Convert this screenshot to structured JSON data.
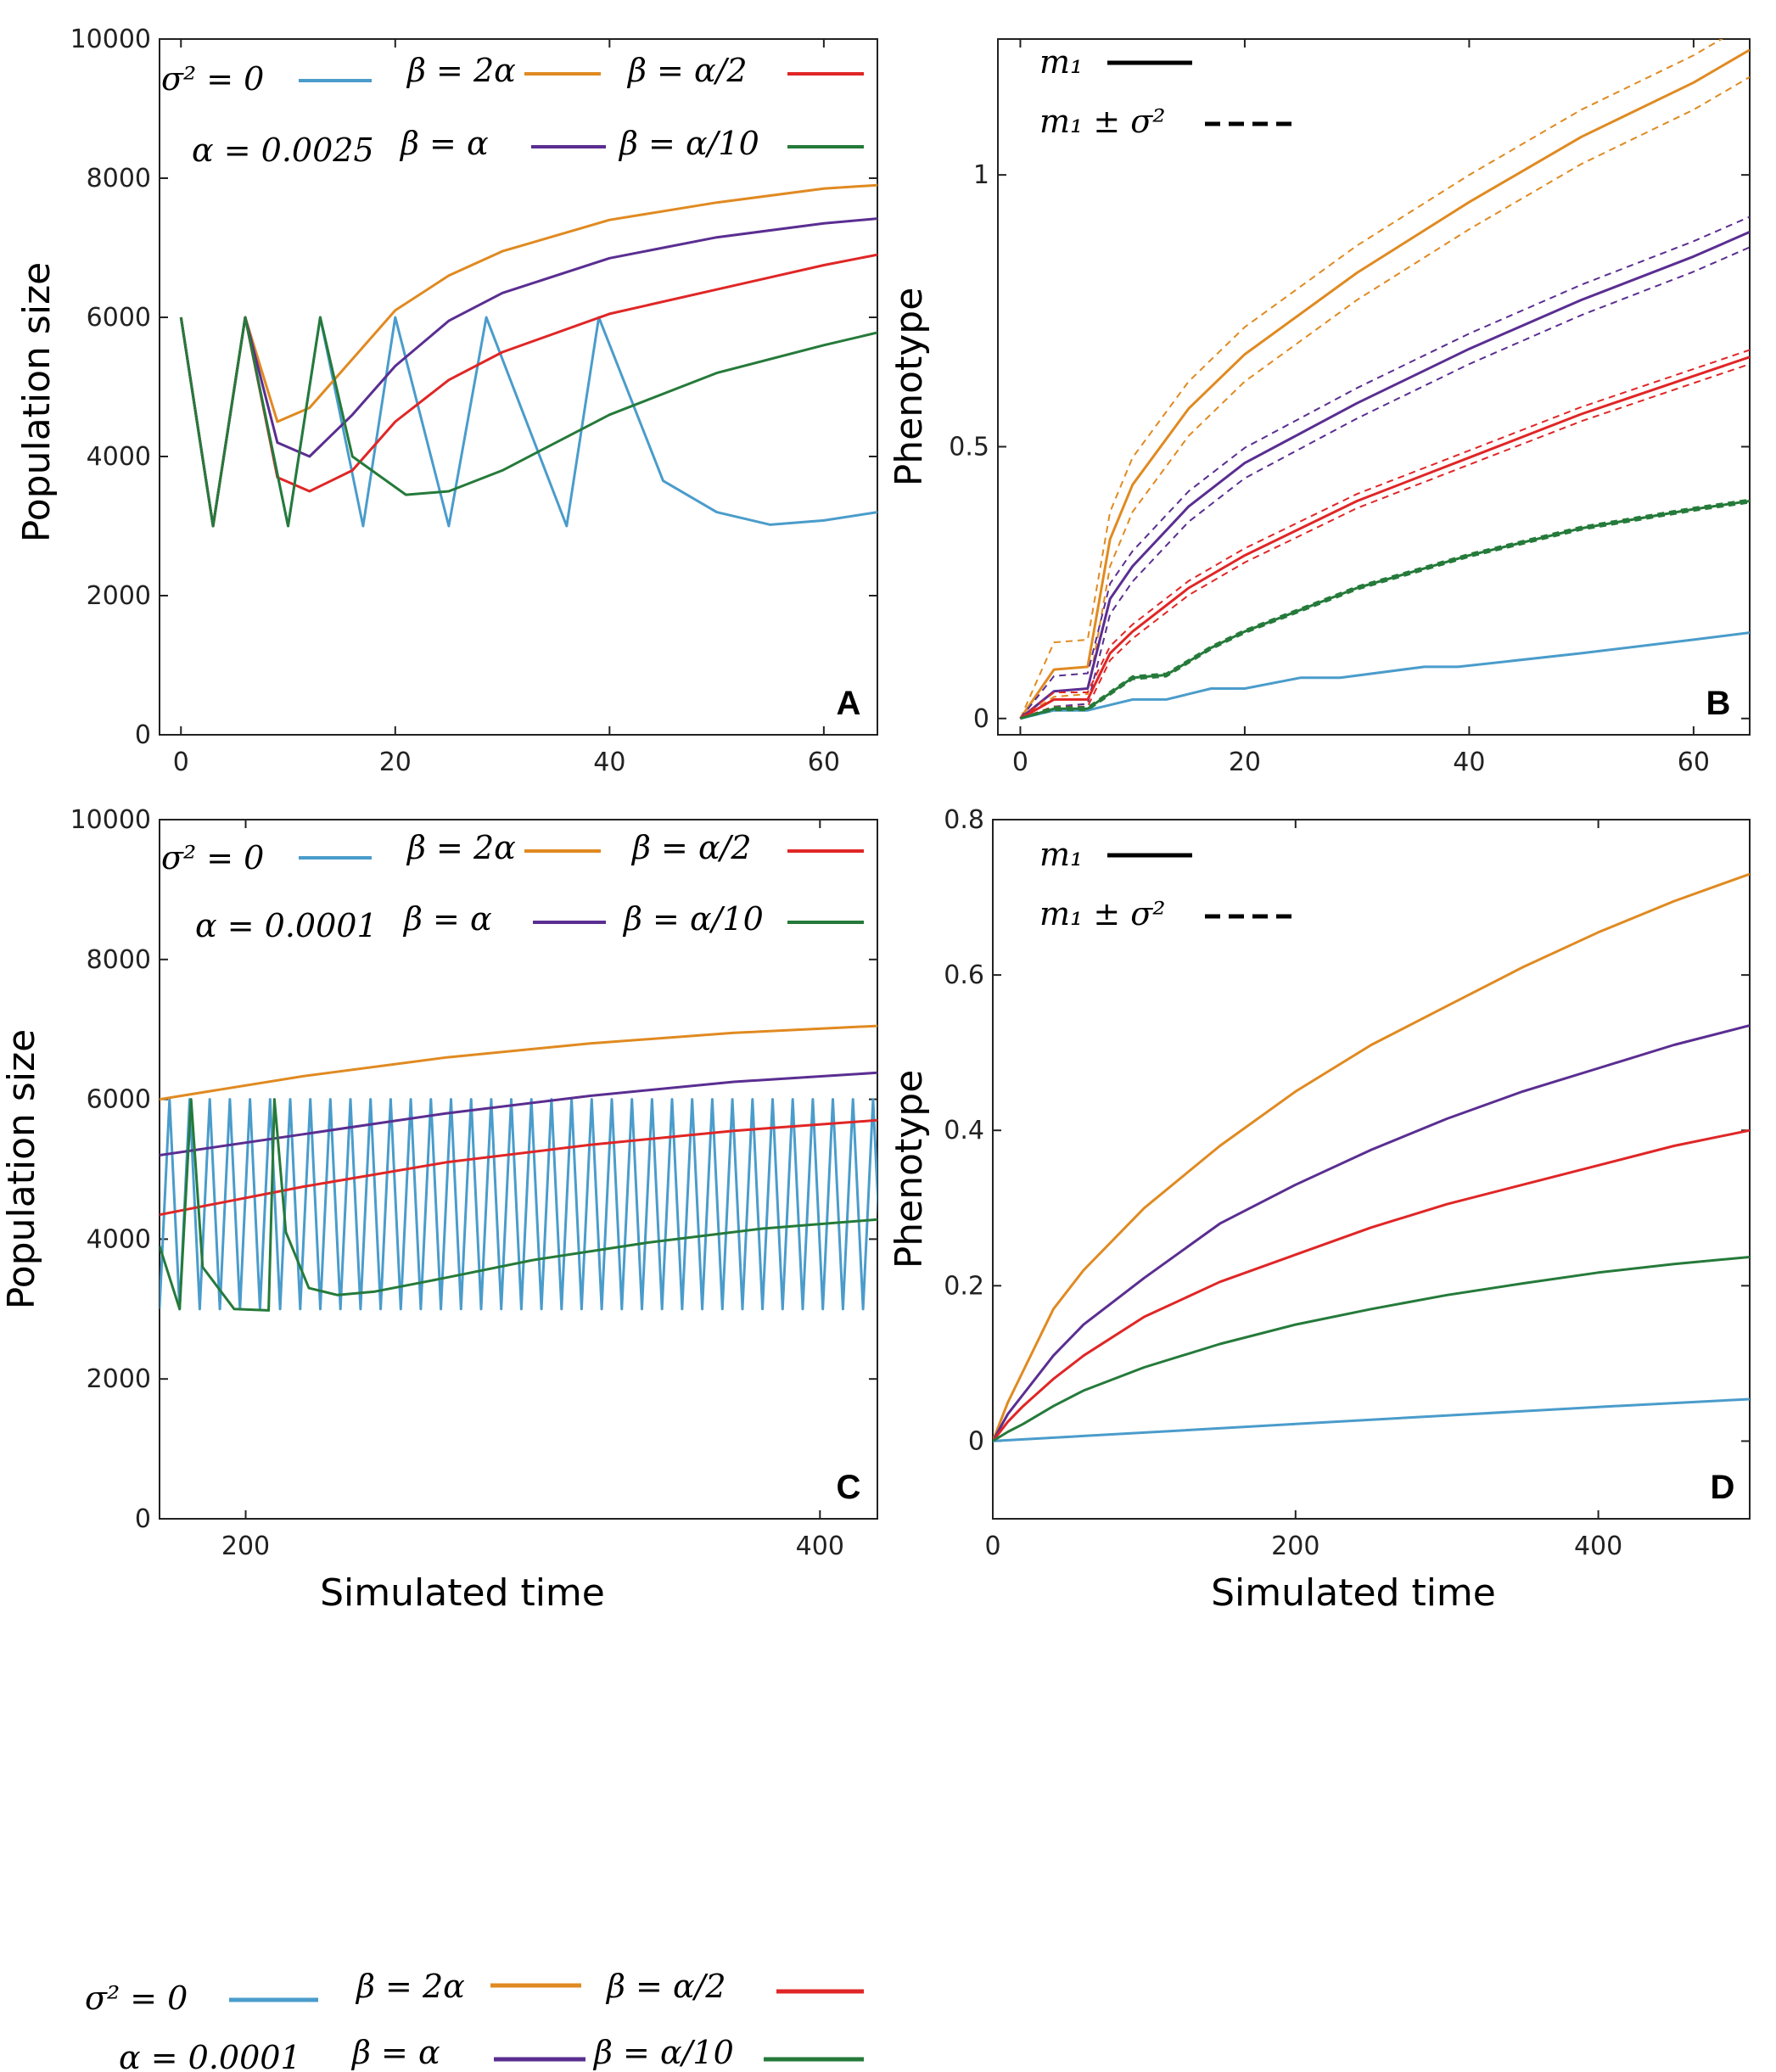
{
  "colors": {
    "sigma0": "#4a9ccb",
    "beta_2alpha": "#e08a21",
    "beta_alpha_half": "#e02626",
    "beta_alpha": "#5a2e91",
    "beta_alpha_tenth": "#257a3a"
  },
  "legend_entries": [
    "σ² = 0",
    "β = 2α",
    "β = α/2",
    "β = α",
    "β = α/10"
  ],
  "legend_alpha_panelA": "α = 0.0025",
  "legend_alpha_panelC": "α = 0.0001",
  "phenotype_legend": {
    "mean": "m₁",
    "spread": "m₁ ± σ²"
  },
  "bottom_legend": {
    "sigma0": "σ² = 0",
    "b2a": "β = 2α",
    "bah": "β = α/2",
    "alpha": "α = 0.0001",
    "ba": "β = α",
    "bat": "β = α/10"
  },
  "chart_data": [
    {
      "panel": "A",
      "type": "line",
      "xlabel": "",
      "ylabel": "Population size",
      "xlim": [
        -2,
        65
      ],
      "ylim": [
        0,
        10000
      ],
      "xticks": [
        "0",
        "20",
        "40",
        "60"
      ],
      "yticks": [
        "0",
        "2000",
        "4000",
        "6000",
        "8000",
        "10000"
      ],
      "series": [
        {
          "name": "σ² = 0",
          "x": [
            0,
            3,
            6,
            10,
            13,
            17,
            20,
            25,
            28.5,
            36,
            39,
            45,
            50,
            55,
            60,
            65
          ],
          "y": [
            6000,
            3000,
            6000,
            3000,
            6000,
            3000,
            6000,
            3000,
            6000,
            3000,
            6000,
            3650,
            3200,
            3020,
            3080,
            3200
          ]
        },
        {
          "name": "β = 2α",
          "x": [
            0,
            3,
            6,
            9,
            12,
            16,
            20,
            25,
            30,
            40,
            50,
            60,
            65
          ],
          "y": [
            6000,
            3000,
            6000,
            4500,
            4700,
            5400,
            6100,
            6600,
            6950,
            7400,
            7650,
            7850,
            7900
          ]
        },
        {
          "name": "β = α/2",
          "x": [
            0,
            3,
            6,
            9,
            12,
            16,
            20,
            25,
            30,
            40,
            50,
            60,
            65
          ],
          "y": [
            6000,
            3000,
            6000,
            3700,
            3500,
            3800,
            4500,
            5100,
            5500,
            6050,
            6400,
            6750,
            6900
          ]
        },
        {
          "name": "β = α",
          "x": [
            0,
            3,
            6,
            9,
            12,
            16,
            20,
            25,
            30,
            40,
            50,
            60,
            65
          ],
          "y": [
            6000,
            3000,
            6000,
            4200,
            4000,
            4600,
            5300,
            5950,
            6350,
            6850,
            7150,
            7350,
            7420
          ]
        },
        {
          "name": "β = α/10",
          "x": [
            0,
            3,
            6,
            10,
            13,
            16,
            21,
            25,
            30,
            35,
            40,
            50,
            60,
            65
          ],
          "y": [
            6000,
            3000,
            6000,
            3000,
            6000,
            4000,
            3450,
            3500,
            3800,
            4200,
            4600,
            5200,
            5600,
            5780
          ]
        }
      ]
    },
    {
      "panel": "B",
      "type": "line",
      "xlabel": "",
      "ylabel": "Phenotype",
      "xlim": [
        -2,
        65
      ],
      "ylim": [
        -0.03,
        1.25
      ],
      "xticks": [
        "0",
        "20",
        "40",
        "60"
      ],
      "yticks": [
        "0",
        "0.5",
        "1"
      ],
      "series": [
        {
          "name": "σ² = 0",
          "x": [
            0,
            3,
            6,
            10,
            13,
            17,
            20,
            25,
            28.5,
            36,
            39,
            50,
            60,
            65
          ],
          "y": [
            0,
            0.015,
            0.015,
            0.035,
            0.035,
            0.055,
            0.055,
            0.075,
            0.075,
            0.095,
            0.095,
            0.12,
            0.145,
            0.158
          ]
        },
        {
          "name": "β = 2α",
          "x": [
            0,
            3,
            6,
            8,
            10,
            15,
            20,
            30,
            40,
            50,
            60,
            65
          ],
          "y": [
            0,
            0.09,
            0.095,
            0.33,
            0.43,
            0.57,
            0.67,
            0.82,
            0.95,
            1.07,
            1.17,
            1.23
          ],
          "band": 0.05
        },
        {
          "name": "β = α",
          "x": [
            0,
            3,
            6,
            8,
            10,
            15,
            20,
            30,
            40,
            50,
            60,
            65
          ],
          "y": [
            0,
            0.05,
            0.055,
            0.22,
            0.28,
            0.39,
            0.47,
            0.58,
            0.68,
            0.77,
            0.85,
            0.895
          ],
          "band": 0.028
        },
        {
          "name": "β = α/2",
          "x": [
            0,
            3,
            6,
            8,
            10,
            15,
            20,
            30,
            40,
            50,
            60,
            65
          ],
          "y": [
            0,
            0.035,
            0.035,
            0.12,
            0.16,
            0.24,
            0.3,
            0.4,
            0.48,
            0.56,
            0.63,
            0.665
          ],
          "band": 0.013
        },
        {
          "name": "β = α/10",
          "x": [
            0,
            3,
            6,
            10,
            13,
            17,
            20,
            30,
            40,
            50,
            60,
            65
          ],
          "y": [
            0,
            0.018,
            0.018,
            0.075,
            0.08,
            0.13,
            0.16,
            0.24,
            0.3,
            0.35,
            0.385,
            0.4
          ],
          "band": 0.003
        }
      ]
    },
    {
      "panel": "C",
      "type": "line",
      "xlabel": "Simulated time",
      "ylabel": "Population size",
      "xlim": [
        170,
        420
      ],
      "ylim": [
        0,
        10000
      ],
      "xticks": [
        "200",
        "400"
      ],
      "yticks": [
        "0",
        "2000",
        "4000",
        "6000",
        "8000",
        "10000"
      ],
      "series": [
        {
          "name": "σ² = 0",
          "oscillation": {
            "low": 3000,
            "high": 6000,
            "period": 7
          }
        },
        {
          "name": "β = 2α",
          "x": [
            170,
            220,
            270,
            320,
            370,
            420
          ],
          "y": [
            6000,
            6330,
            6600,
            6800,
            6950,
            7050
          ]
        },
        {
          "name": "β = α",
          "x": [
            170,
            220,
            270,
            320,
            370,
            420
          ],
          "y": [
            5200,
            5500,
            5800,
            6050,
            6250,
            6380
          ]
        },
        {
          "name": "β = α/2",
          "x": [
            170,
            220,
            270,
            320,
            370,
            420
          ],
          "y": [
            4350,
            4750,
            5100,
            5350,
            5550,
            5700
          ]
        },
        {
          "name": "β = α/10",
          "x": [
            170,
            177,
            181,
            185,
            196,
            208,
            210,
            214,
            222,
            232,
            245,
            270,
            300,
            340,
            380,
            420
          ],
          "y": [
            3900,
            3000,
            6000,
            3600,
            3000,
            2980,
            6000,
            4100,
            3300,
            3200,
            3250,
            3450,
            3700,
            3950,
            4150,
            4280
          ]
        }
      ]
    },
    {
      "panel": "D",
      "type": "line",
      "xlabel": "Simulated time",
      "ylabel": "Phenotype",
      "xlim": [
        0,
        500
      ],
      "ylim": [
        -0.1,
        0.8
      ],
      "xticks": [
        "0",
        "200",
        "400"
      ],
      "yticks": [
        "0",
        "0.2",
        "0.4",
        "0.6",
        "0.8"
      ],
      "series": [
        {
          "name": "σ² = 0",
          "x": [
            0,
            100,
            200,
            300,
            400,
            500
          ],
          "y": [
            0,
            0.011,
            0.022,
            0.033,
            0.044,
            0.054
          ]
        },
        {
          "name": "β = 2α",
          "x": [
            0,
            10,
            20,
            40,
            60,
            100,
            150,
            200,
            250,
            300,
            350,
            400,
            450,
            500
          ],
          "y": [
            0,
            0.05,
            0.09,
            0.17,
            0.22,
            0.3,
            0.38,
            0.45,
            0.51,
            0.56,
            0.61,
            0.655,
            0.695,
            0.73
          ]
        },
        {
          "name": "β = α",
          "x": [
            0,
            10,
            20,
            40,
            60,
            100,
            150,
            200,
            250,
            300,
            350,
            400,
            450,
            500
          ],
          "y": [
            0,
            0.035,
            0.06,
            0.11,
            0.15,
            0.21,
            0.28,
            0.33,
            0.375,
            0.415,
            0.45,
            0.48,
            0.51,
            0.535
          ]
        },
        {
          "name": "β = α/2",
          "x": [
            0,
            10,
            20,
            40,
            60,
            100,
            150,
            200,
            250,
            300,
            350,
            400,
            450,
            500
          ],
          "y": [
            0,
            0.025,
            0.045,
            0.08,
            0.11,
            0.16,
            0.205,
            0.24,
            0.275,
            0.305,
            0.33,
            0.355,
            0.38,
            0.4
          ]
        },
        {
          "name": "β = α/10",
          "x": [
            0,
            10,
            20,
            40,
            60,
            100,
            150,
            200,
            250,
            300,
            350,
            400,
            450,
            500
          ],
          "y": [
            0,
            0.012,
            0.022,
            0.045,
            0.065,
            0.095,
            0.125,
            0.15,
            0.17,
            0.188,
            0.203,
            0.217,
            0.228,
            0.237
          ]
        }
      ]
    }
  ]
}
